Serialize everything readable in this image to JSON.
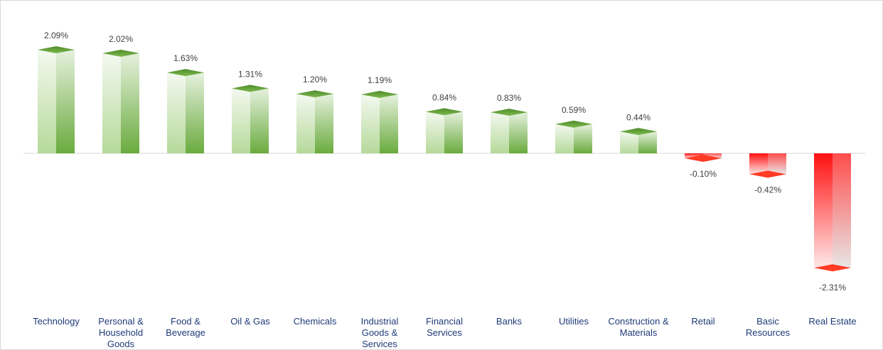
{
  "chart_data": {
    "type": "bar",
    "style": "3d-column",
    "categories": [
      [
        "Technology"
      ],
      [
        "Personal &",
        "Household",
        "Goods"
      ],
      [
        "Food &",
        "Beverage"
      ],
      [
        "Oil & Gas"
      ],
      [
        "Chemicals"
      ],
      [
        "Industrial",
        "Goods &",
        "Services"
      ],
      [
        "Financial",
        "Services"
      ],
      [
        "Banks"
      ],
      [
        "Utilities"
      ],
      [
        "Construction &",
        "Materials"
      ],
      [
        "Retail"
      ],
      [
        "Basic",
        "Resources"
      ],
      [
        "Real Estate"
      ]
    ],
    "values": [
      2.09,
      2.02,
      1.63,
      1.31,
      1.2,
      1.19,
      0.84,
      0.83,
      0.59,
      0.44,
      -0.1,
      -0.42,
      -2.31
    ],
    "labels": [
      "2.09%",
      "2.02%",
      "1.63%",
      "1.31%",
      "1.20%",
      "1.19%",
      "0.84%",
      "0.83%",
      "0.59%",
      "0.44%",
      "-0.10%",
      "-0.42%",
      "-2.31%"
    ],
    "title": "",
    "xlabel": "",
    "ylabel": "",
    "ylim": [
      -2.31,
      2.09
    ],
    "grid": false,
    "legend": "none",
    "colors": {
      "positive": "#70ad47",
      "negative": "#ff0000",
      "axis": "#d9d9d9"
    }
  }
}
